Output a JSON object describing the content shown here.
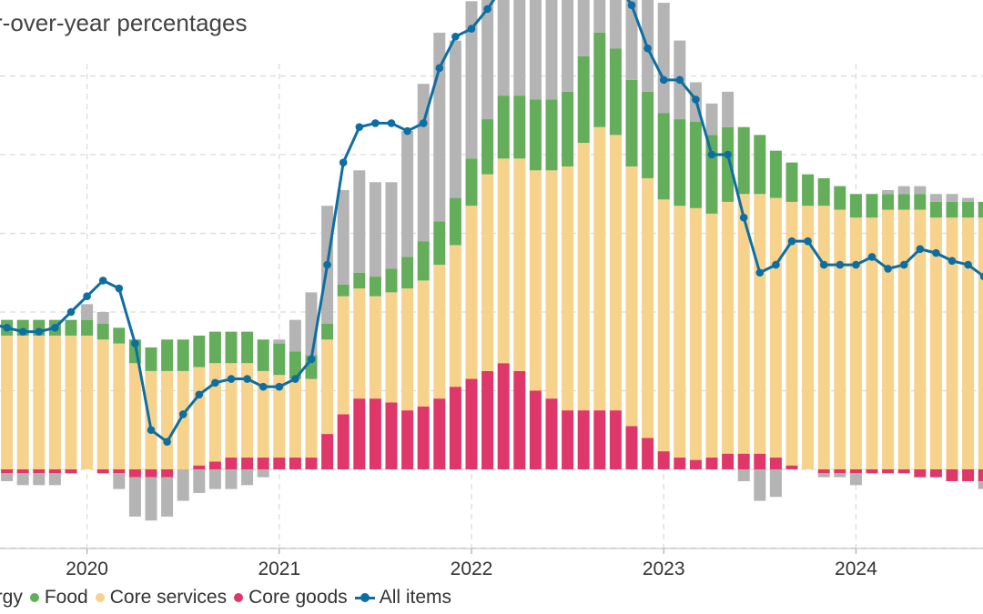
{
  "chart_data": {
    "type": "stacked-bar-with-line",
    "title": "r-over-year percentages",
    "x_tick_labels": [
      "2020",
      "2021",
      "2022",
      "2023",
      "2024"
    ],
    "ylim": [
      -1.0,
      8.0
    ],
    "x": [
      "2019-07",
      "2019-08",
      "2019-09",
      "2019-10",
      "2019-11",
      "2019-12",
      "2020-01",
      "2020-02",
      "2020-03",
      "2020-04",
      "2020-05",
      "2020-06",
      "2020-07",
      "2020-08",
      "2020-09",
      "2020-10",
      "2020-11",
      "2020-12",
      "2021-01",
      "2021-02",
      "2021-03",
      "2021-04",
      "2021-05",
      "2021-06",
      "2021-07",
      "2021-08",
      "2021-09",
      "2021-10",
      "2021-11",
      "2021-12",
      "2022-01",
      "2022-02",
      "2022-03",
      "2022-04",
      "2022-05",
      "2022-06",
      "2022-07",
      "2022-08",
      "2022-09",
      "2022-10",
      "2022-11",
      "2022-12",
      "2023-01",
      "2023-02",
      "2023-03",
      "2023-04",
      "2023-05",
      "2023-06",
      "2023-07",
      "2023-08",
      "2023-09",
      "2023-10",
      "2023-11",
      "2023-12",
      "2024-01",
      "2024-02",
      "2024-03",
      "2024-04",
      "2024-05",
      "2024-06",
      "2024-07",
      "2024-08",
      "2024-09",
      "2024-10"
    ],
    "series": [
      {
        "name": "Energy",
        "color": "#b4b4b4",
        "values": [
          -0.1,
          -0.1,
          -0.15,
          -0.15,
          -0.15,
          0.0,
          0.2,
          0.15,
          -0.2,
          -0.5,
          -0.55,
          -0.5,
          -0.4,
          -0.3,
          -0.25,
          -0.25,
          -0.2,
          -0.1,
          0.05,
          0.4,
          0.8,
          1.5,
          1.2,
          1.3,
          1.2,
          1.1,
          1.6,
          2.0,
          2.4,
          2.0,
          2.0,
          2.3,
          2.7,
          2.2,
          2.6,
          3.3,
          3.0,
          2.8,
          2.6,
          2.8,
          2.2,
          1.6,
          1.4,
          1.0,
          0.5,
          0.4,
          0.45,
          -0.15,
          -0.4,
          -0.35,
          0.0,
          0.0,
          -0.05,
          -0.05,
          -0.15,
          0.0,
          0.05,
          0.1,
          0.1,
          0.1,
          0.1,
          0.05,
          -0.1,
          -0.15
        ]
      },
      {
        "name": "Food",
        "color": "#63ad5b",
        "values": [
          0.2,
          0.2,
          0.2,
          0.2,
          0.2,
          0.2,
          0.2,
          0.2,
          0.2,
          0.3,
          0.3,
          0.4,
          0.4,
          0.4,
          0.4,
          0.4,
          0.4,
          0.4,
          0.4,
          0.35,
          0.3,
          0.2,
          0.15,
          0.2,
          0.25,
          0.3,
          0.4,
          0.5,
          0.55,
          0.6,
          0.6,
          0.7,
          0.8,
          0.8,
          0.9,
          0.9,
          0.95,
          1.1,
          1.2,
          1.1,
          1.1,
          1.1,
          1.1,
          1.1,
          1.1,
          1.0,
          0.95,
          0.85,
          0.75,
          0.6,
          0.5,
          0.4,
          0.35,
          0.3,
          0.3,
          0.3,
          0.2,
          0.2,
          0.2,
          0.2,
          0.2,
          0.2,
          0.2,
          0.15
        ]
      },
      {
        "name": "Core services",
        "color": "#f6d28d",
        "values": [
          1.7,
          1.7,
          1.7,
          1.7,
          1.7,
          1.7,
          1.7,
          1.65,
          1.6,
          1.35,
          1.25,
          1.25,
          1.25,
          1.25,
          1.25,
          1.2,
          1.2,
          1.1,
          1.05,
          1.0,
          1.0,
          1.2,
          1.5,
          1.4,
          1.3,
          1.4,
          1.55,
          1.6,
          1.7,
          1.8,
          2.2,
          2.5,
          2.6,
          2.7,
          2.8,
          2.9,
          3.1,
          3.4,
          3.6,
          3.5,
          3.3,
          3.3,
          3.2,
          3.2,
          3.2,
          3.1,
          3.2,
          3.3,
          3.3,
          3.3,
          3.35,
          3.35,
          3.35,
          3.3,
          3.2,
          3.2,
          3.3,
          3.3,
          3.3,
          3.2,
          3.2,
          3.2,
          3.2,
          3.2
        ]
      },
      {
        "name": "Core goods",
        "color": "#e03769",
        "values": [
          -0.05,
          -0.05,
          -0.05,
          -0.05,
          -0.05,
          -0.05,
          0.0,
          -0.05,
          -0.05,
          -0.1,
          -0.1,
          -0.1,
          0.0,
          0.05,
          0.1,
          0.15,
          0.15,
          0.15,
          0.15,
          0.15,
          0.15,
          0.45,
          0.7,
          0.9,
          0.9,
          0.85,
          0.75,
          0.8,
          0.9,
          1.05,
          1.15,
          1.25,
          1.35,
          1.25,
          1.0,
          0.9,
          0.75,
          0.75,
          0.75,
          0.75,
          0.55,
          0.4,
          0.23,
          0.15,
          0.12,
          0.15,
          0.2,
          0.2,
          0.2,
          0.15,
          0.05,
          0.0,
          -0.05,
          -0.05,
          -0.05,
          -0.05,
          -0.05,
          -0.05,
          -0.1,
          -0.1,
          -0.15,
          -0.15,
          -0.15,
          -0.15
        ]
      },
      {
        "name": "All items",
        "color": "#0c6ea3",
        "type": "line",
        "values": [
          1.85,
          1.8,
          1.75,
          1.75,
          1.8,
          2.0,
          2.2,
          2.4,
          2.3,
          1.6,
          0.5,
          0.35,
          0.7,
          0.95,
          1.1,
          1.15,
          1.15,
          1.05,
          1.05,
          1.15,
          1.4,
          2.6,
          3.9,
          4.35,
          4.4,
          4.4,
          4.3,
          4.4,
          5.1,
          5.5,
          5.6,
          5.85,
          6.15,
          6.45,
          6.3,
          6.45,
          6.8,
          6.5,
          6.25,
          6.2,
          5.9,
          5.35,
          4.95,
          4.95,
          4.7,
          4.0,
          4.0,
          3.2,
          2.5,
          2.6,
          2.9,
          2.9,
          2.6,
          2.6,
          2.6,
          2.7,
          2.55,
          2.6,
          2.8,
          2.75,
          2.65,
          2.6,
          2.45,
          2.25
        ]
      }
    ]
  },
  "legend": {
    "energy": "ergy",
    "food": "Food",
    "core_services": "Core services",
    "core_goods": "Core goods",
    "all_items": "All items"
  }
}
